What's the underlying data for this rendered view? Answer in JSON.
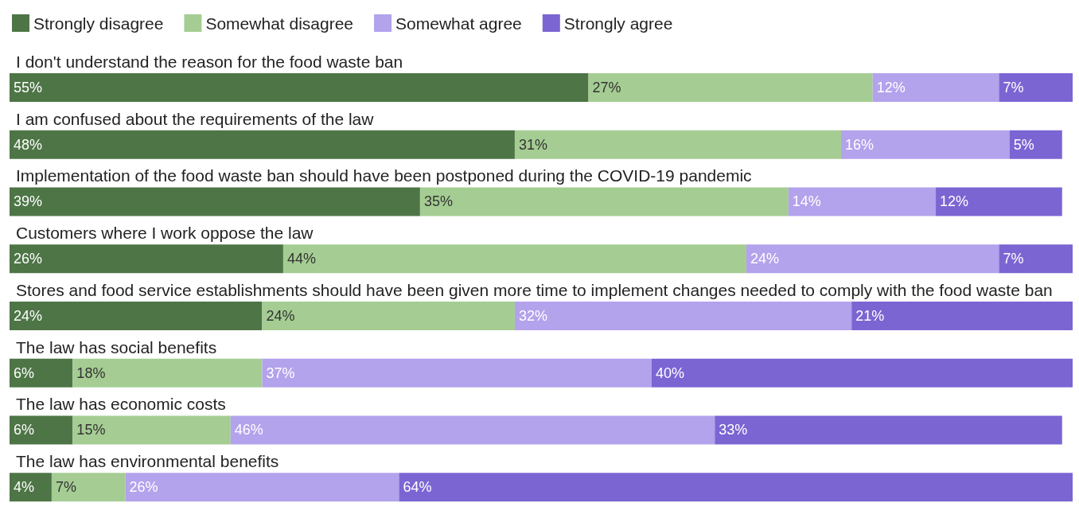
{
  "chart_data": {
    "type": "bar",
    "orientation": "horizontal",
    "stacked": true,
    "legend": "top left",
    "categories": [
      "I don't understand the reason for the food waste ban",
      "I am confused about the requirements of the law",
      "Implementation of the food waste ban should have been postponed during the COVID-19 pandemic",
      "Customers where I work oppose the law",
      "Stores and food service establishments should have been given more time to implement changes needed to comply with the food waste ban",
      "The law has social benefits",
      "The law has economic costs",
      "The law has environmental benefits"
    ],
    "series": [
      {
        "name": "Strongly disagree",
        "color": "#4e7546",
        "values": [
          55,
          48,
          39,
          26,
          24,
          6,
          6,
          4
        ],
        "value_labels": [
          "55%",
          "48%",
          "39%",
          "26%",
          "24%",
          "6%",
          "6%",
          "4%"
        ]
      },
      {
        "name": "Somewhat disagree",
        "color": "#a5cd93",
        "values": [
          27,
          31,
          35,
          44,
          24,
          18,
          15,
          7
        ],
        "value_labels": [
          "27%",
          "31%",
          "35%",
          "44%",
          "24%",
          "18%",
          "15%",
          "7%"
        ]
      },
      {
        "name": "Somewhat agree",
        "color": "#b3a2ec",
        "values": [
          12,
          16,
          14,
          24,
          32,
          37,
          46,
          26
        ],
        "value_labels": [
          "12%",
          "16%",
          "14%",
          "24%",
          "32%",
          "37%",
          "46%",
          "26%"
        ]
      },
      {
        "name": "Strongly agree",
        "color": "#7b65d3",
        "values": [
          7,
          5,
          12,
          7,
          21,
          40,
          33,
          64
        ],
        "value_labels": [
          "7%",
          "5%",
          "12%",
          "7%",
          "21%",
          "40%",
          "33%",
          "64%"
        ]
      }
    ]
  }
}
